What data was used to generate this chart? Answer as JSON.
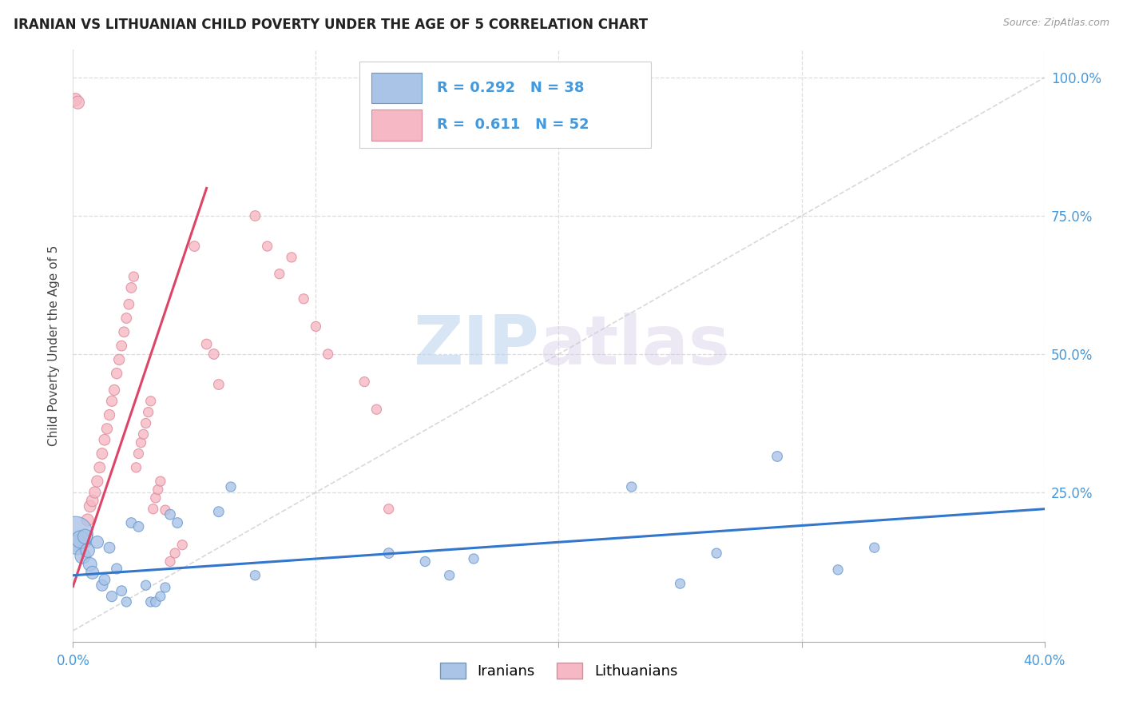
{
  "title": "IRANIAN VS LITHUANIAN CHILD POVERTY UNDER THE AGE OF 5 CORRELATION CHART",
  "source": "Source: ZipAtlas.com",
  "ylabel": "Child Poverty Under the Age of 5",
  "xlim": [
    0.0,
    0.4
  ],
  "ylim": [
    -0.02,
    1.05
  ],
  "grid_color": "#dddddd",
  "background_color": "#ffffff",
  "iranian_color": "#aac4e8",
  "iranian_edge_color": "#6699cc",
  "lithuanian_color": "#f5b8c4",
  "lithuanian_edge_color": "#dd8899",
  "iranian_line_color": "#3377cc",
  "lithuanian_line_color": "#dd4466",
  "legend_label_iranian": "Iranians",
  "legend_label_lithuanian": "Lithuanians",
  "r_iranian": "0.292",
  "n_iranian": "38",
  "r_lithuanian": "0.611",
  "n_lithuanian": "52",
  "stat_color": "#4499dd",
  "watermark_zip": "ZIP",
  "watermark_atlas": "atlas",
  "iranian_points": [
    [
      0.001,
      0.175,
      280
    ],
    [
      0.002,
      0.155,
      90
    ],
    [
      0.003,
      0.165,
      70
    ],
    [
      0.004,
      0.135,
      55
    ],
    [
      0.005,
      0.17,
      50
    ],
    [
      0.006,
      0.145,
      45
    ],
    [
      0.007,
      0.12,
      42
    ],
    [
      0.008,
      0.105,
      38
    ],
    [
      0.01,
      0.16,
      35
    ],
    [
      0.012,
      0.082,
      30
    ],
    [
      0.013,
      0.092,
      28
    ],
    [
      0.015,
      0.15,
      28
    ],
    [
      0.016,
      0.062,
      26
    ],
    [
      0.018,
      0.112,
      25
    ],
    [
      0.02,
      0.072,
      24
    ],
    [
      0.022,
      0.052,
      22
    ],
    [
      0.024,
      0.195,
      24
    ],
    [
      0.027,
      0.188,
      24
    ],
    [
      0.03,
      0.082,
      22
    ],
    [
      0.032,
      0.052,
      22
    ],
    [
      0.034,
      0.052,
      22
    ],
    [
      0.036,
      0.062,
      22
    ],
    [
      0.038,
      0.078,
      22
    ],
    [
      0.04,
      0.21,
      24
    ],
    [
      0.043,
      0.195,
      24
    ],
    [
      0.06,
      0.215,
      24
    ],
    [
      0.065,
      0.26,
      22
    ],
    [
      0.075,
      0.1,
      22
    ],
    [
      0.13,
      0.14,
      24
    ],
    [
      0.145,
      0.125,
      22
    ],
    [
      0.155,
      0.1,
      22
    ],
    [
      0.165,
      0.13,
      22
    ],
    [
      0.23,
      0.26,
      22
    ],
    [
      0.25,
      0.085,
      22
    ],
    [
      0.265,
      0.14,
      22
    ],
    [
      0.29,
      0.315,
      24
    ],
    [
      0.315,
      0.11,
      22
    ],
    [
      0.33,
      0.15,
      22
    ]
  ],
  "lithuanian_points": [
    [
      0.001,
      0.96,
      38
    ],
    [
      0.002,
      0.955,
      38
    ],
    [
      0.005,
      0.16,
      34
    ],
    [
      0.006,
      0.2,
      34
    ],
    [
      0.007,
      0.225,
      32
    ],
    [
      0.008,
      0.235,
      32
    ],
    [
      0.009,
      0.25,
      30
    ],
    [
      0.01,
      0.27,
      30
    ],
    [
      0.011,
      0.295,
      28
    ],
    [
      0.012,
      0.32,
      28
    ],
    [
      0.013,
      0.345,
      28
    ],
    [
      0.014,
      0.365,
      26
    ],
    [
      0.015,
      0.39,
      26
    ],
    [
      0.016,
      0.415,
      26
    ],
    [
      0.017,
      0.435,
      26
    ],
    [
      0.018,
      0.465,
      26
    ],
    [
      0.019,
      0.49,
      26
    ],
    [
      0.02,
      0.515,
      24
    ],
    [
      0.021,
      0.54,
      24
    ],
    [
      0.022,
      0.565,
      24
    ],
    [
      0.023,
      0.59,
      24
    ],
    [
      0.024,
      0.62,
      24
    ],
    [
      0.025,
      0.64,
      22
    ],
    [
      0.026,
      0.295,
      22
    ],
    [
      0.027,
      0.32,
      22
    ],
    [
      0.028,
      0.34,
      22
    ],
    [
      0.029,
      0.355,
      22
    ],
    [
      0.03,
      0.375,
      22
    ],
    [
      0.031,
      0.395,
      22
    ],
    [
      0.032,
      0.415,
      22
    ],
    [
      0.033,
      0.22,
      22
    ],
    [
      0.034,
      0.24,
      22
    ],
    [
      0.035,
      0.255,
      22
    ],
    [
      0.036,
      0.27,
      22
    ],
    [
      0.038,
      0.218,
      22
    ],
    [
      0.04,
      0.125,
      22
    ],
    [
      0.042,
      0.14,
      22
    ],
    [
      0.045,
      0.155,
      22
    ],
    [
      0.05,
      0.695,
      24
    ],
    [
      0.055,
      0.518,
      24
    ],
    [
      0.058,
      0.5,
      24
    ],
    [
      0.06,
      0.445,
      24
    ],
    [
      0.075,
      0.75,
      24
    ],
    [
      0.08,
      0.695,
      22
    ],
    [
      0.085,
      0.645,
      22
    ],
    [
      0.09,
      0.675,
      22
    ],
    [
      0.095,
      0.6,
      22
    ],
    [
      0.1,
      0.55,
      22
    ],
    [
      0.105,
      0.5,
      22
    ],
    [
      0.12,
      0.45,
      22
    ],
    [
      0.125,
      0.4,
      22
    ],
    [
      0.13,
      0.22,
      22
    ]
  ],
  "lith_line_x0": 0.0,
  "lith_line_x1": 0.055,
  "lith_line_y0": 0.08,
  "lith_line_y1": 0.8,
  "iran_line_x0": 0.0,
  "iran_line_x1": 0.4,
  "iran_line_y0": 0.1,
  "iran_line_y1": 0.22
}
